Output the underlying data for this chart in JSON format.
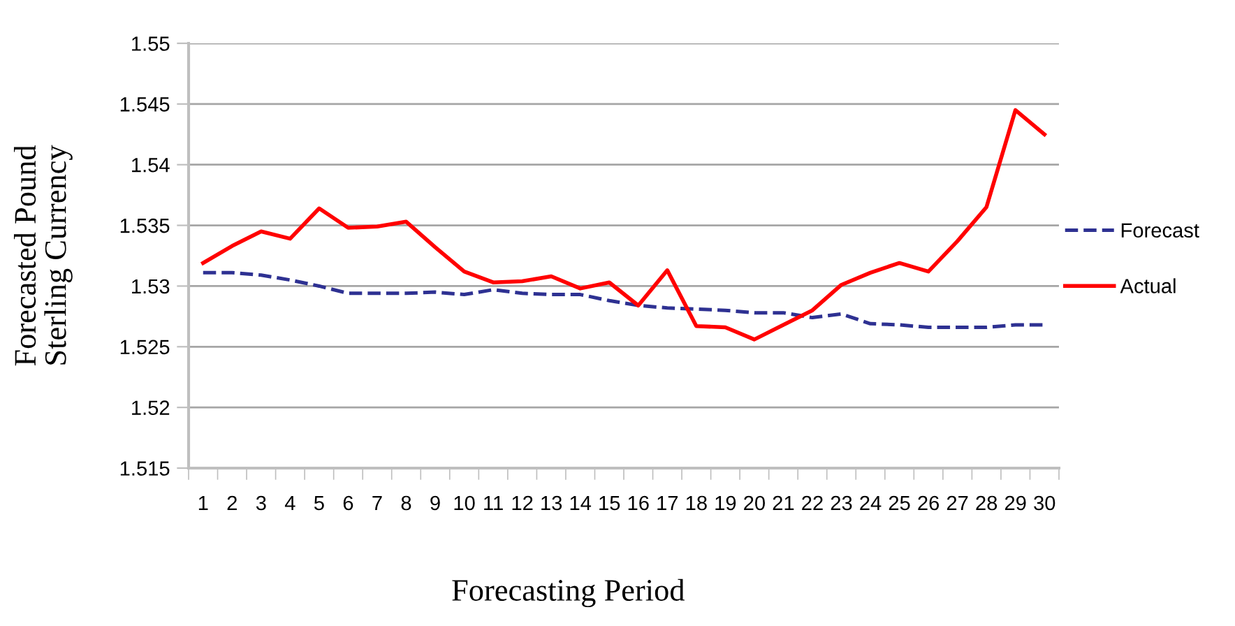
{
  "chart_data": {
    "type": "line",
    "xlabel": "Forecasting Period",
    "ylabel": "Forecasted Pound\nSterling Currency",
    "categories": [
      "1",
      "2",
      "3",
      "4",
      "5",
      "6",
      "7",
      "8",
      "9",
      "10",
      "11",
      "12",
      "13",
      "14",
      "15",
      "16",
      "17",
      "18",
      "19",
      "20",
      "21",
      "22",
      "23",
      "24",
      "25",
      "26",
      "27",
      "28",
      "29",
      "30"
    ],
    "series": [
      {
        "name": "Forecast",
        "color": "#2e3192",
        "line_style": "dashed",
        "values": [
          1.5311,
          1.5311,
          1.5309,
          1.5305,
          1.53,
          1.5294,
          1.5294,
          1.5294,
          1.5295,
          1.5293,
          1.5297,
          1.5294,
          1.5293,
          1.5293,
          1.5288,
          1.5284,
          1.5282,
          1.5281,
          1.528,
          1.5278,
          1.5278,
          1.5274,
          1.5277,
          1.5269,
          1.5268,
          1.5266,
          1.5266,
          1.5266,
          1.5268,
          1.5268
        ]
      },
      {
        "name": "Actual",
        "color": "#ff0000",
        "line_style": "solid",
        "values": [
          1.5319,
          1.5333,
          1.5345,
          1.5339,
          1.5364,
          1.5348,
          1.5349,
          1.5353,
          1.5332,
          1.5312,
          1.5303,
          1.5304,
          1.5308,
          1.5298,
          1.5303,
          1.5284,
          1.5313,
          1.5267,
          1.5266,
          1.5256,
          1.5268,
          1.528,
          1.5301,
          1.5311,
          1.5319,
          1.5312,
          1.5337,
          1.5365,
          1.5445,
          1.5425
        ]
      }
    ],
    "ylim": [
      1.515,
      1.55
    ],
    "yticks": [
      1.515,
      1.52,
      1.525,
      1.53,
      1.535,
      1.54,
      1.545,
      1.55
    ],
    "grid": "y",
    "legend": "right",
    "marker": "none"
  }
}
